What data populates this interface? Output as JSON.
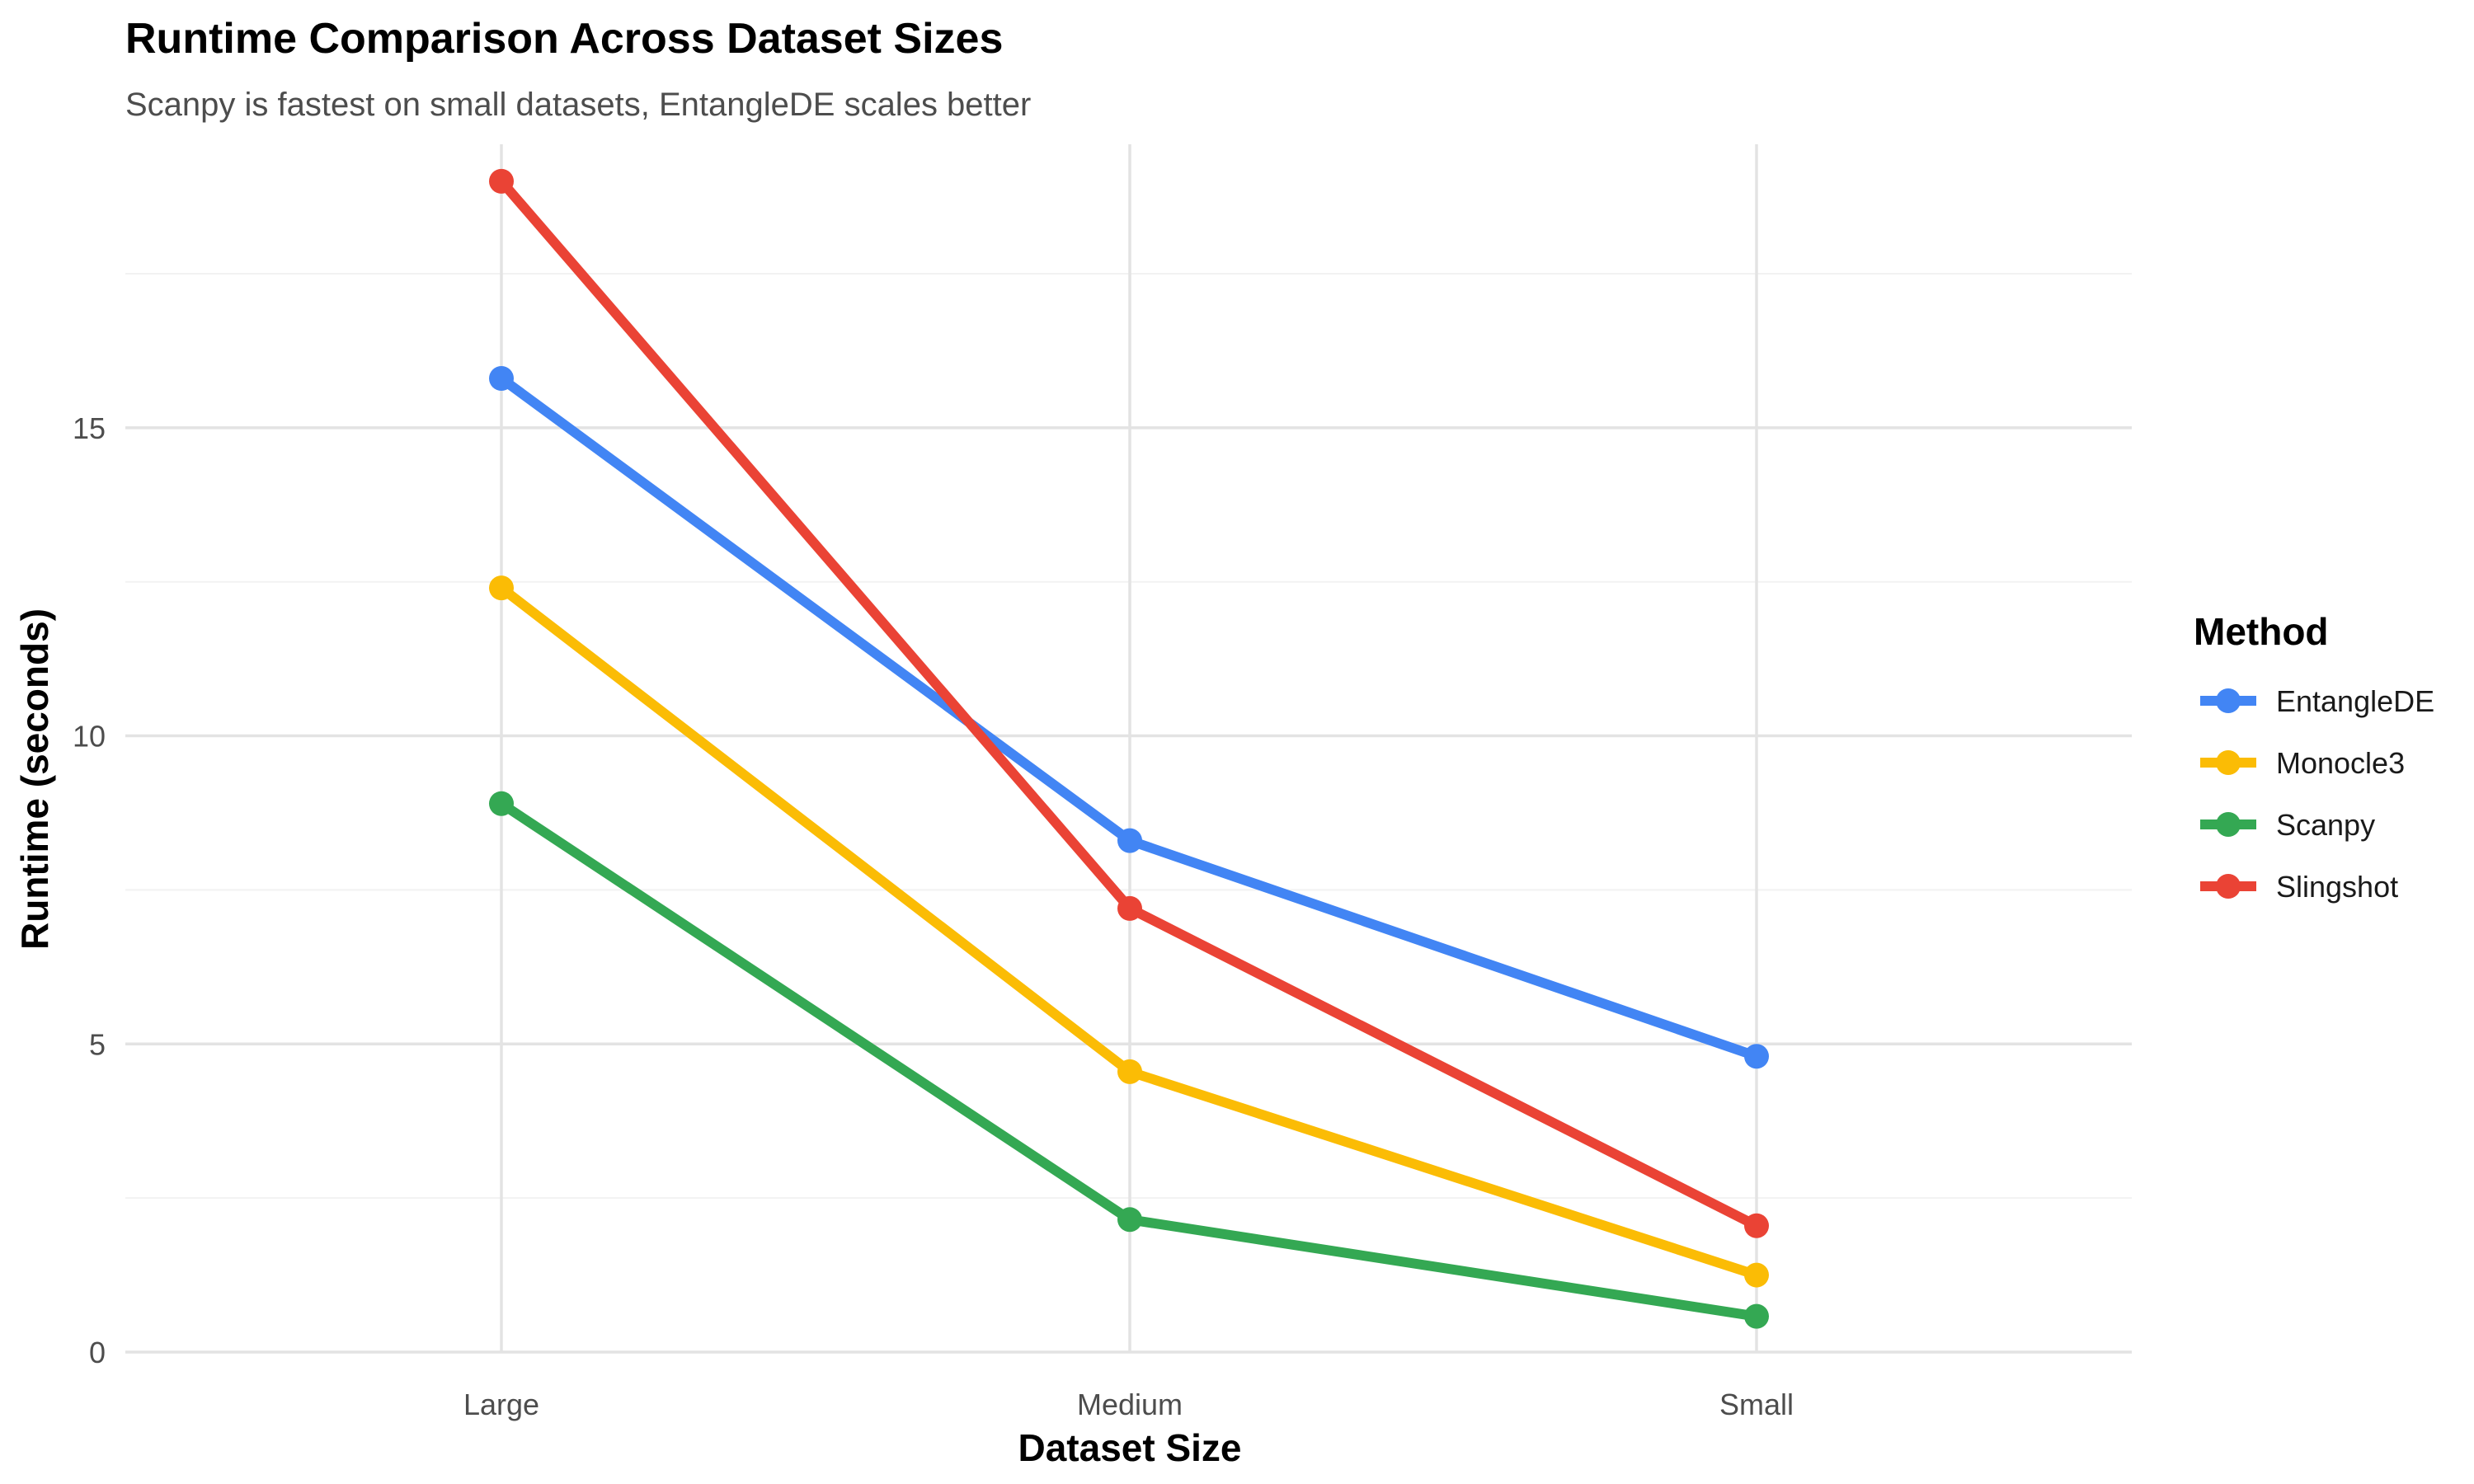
{
  "chart_data": {
    "type": "line",
    "title": "Runtime Comparison Across Dataset Sizes",
    "subtitle": "Scanpy is fastest on small datasets, EntangleDE scales better",
    "xlabel": "Dataset Size",
    "ylabel": "Runtime (seconds)",
    "categories": [
      "Large",
      "Medium",
      "Small"
    ],
    "ylim": [
      0,
      19.6
    ],
    "y_ticks": [
      0,
      5,
      10,
      15
    ],
    "y_tick_labels": [
      "0",
      "5",
      "10",
      "15"
    ],
    "grid": true,
    "legend": {
      "title": "Method",
      "placement": "right"
    },
    "series": [
      {
        "name": "EntangleDE",
        "color": "#4285F4",
        "values": [
          15.8,
          8.3,
          4.8
        ]
      },
      {
        "name": "Monocle3",
        "color": "#FBBC05",
        "values": [
          12.4,
          4.55,
          1.25
        ]
      },
      {
        "name": "Scanpy",
        "color": "#34A853",
        "values": [
          8.9,
          2.15,
          0.58
        ]
      },
      {
        "name": "Slingshot",
        "color": "#EA4335",
        "values": [
          19.0,
          7.2,
          2.05
        ]
      }
    ]
  }
}
